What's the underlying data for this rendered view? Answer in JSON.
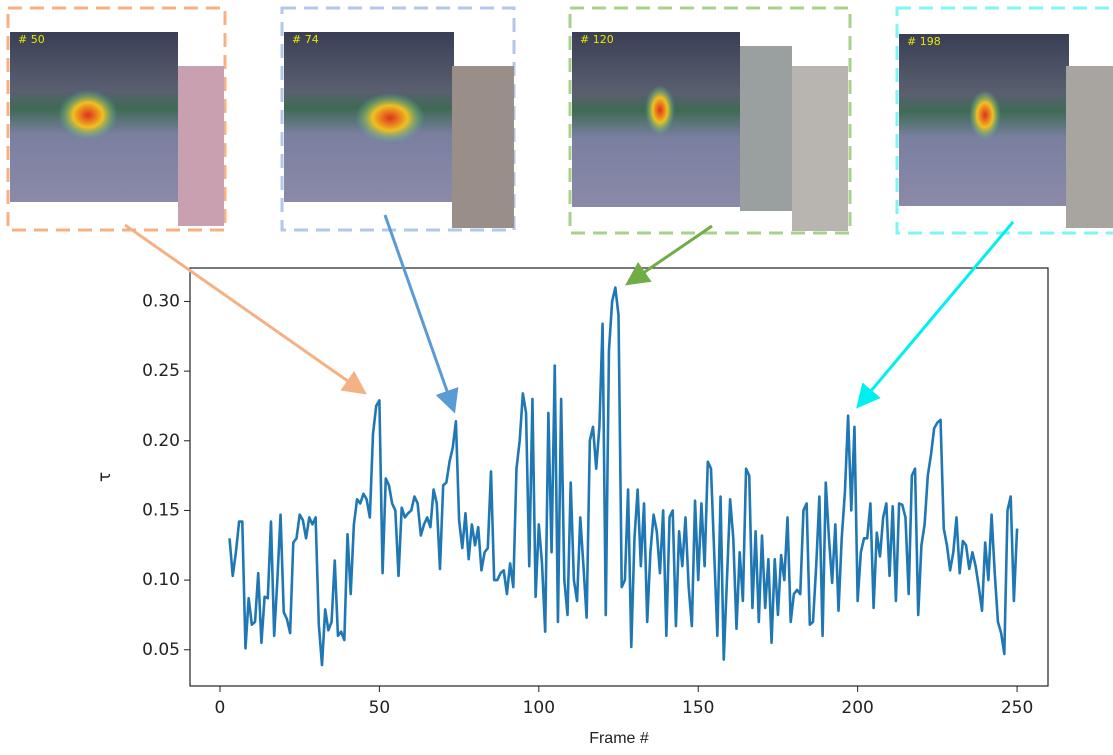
{
  "chart_data": {
    "type": "line",
    "x_label": "Frame #",
    "y_label": "τ",
    "annotations": [
      "# 50",
      "# 74",
      "# 120",
      "# 198"
    ],
    "xlim": [
      -9.4,
      259.7
    ],
    "ylim": [
      0.024,
      0.324
    ],
    "xticks": [
      0,
      50,
      100,
      150,
      200,
      250
    ],
    "yticks": [
      0.05,
      {
        "value": 0.1,
        "label": "0.10"
      },
      0.15,
      {
        "value": 0.2,
        "label": "0.20"
      },
      0.25,
      {
        "value": 0.3,
        "label": "0.30"
      }
    ],
    "x": [
      3,
      4,
      5,
      6,
      7,
      8,
      9,
      10,
      11,
      12,
      13,
      14,
      15,
      16,
      17,
      18,
      19,
      20,
      21,
      22,
      23,
      24,
      25,
      26,
      27,
      28,
      29,
      30,
      31,
      32,
      33,
      34,
      35,
      36,
      37,
      38,
      39,
      40,
      41,
      42,
      43,
      44,
      45,
      46,
      47,
      48,
      49,
      50,
      51,
      52,
      53,
      54,
      55,
      56,
      57,
      58,
      59,
      60,
      61,
      62,
      63,
      64,
      65,
      66,
      67,
      68,
      69,
      70,
      71,
      72,
      73,
      74,
      75,
      76,
      77,
      78,
      79,
      80,
      81,
      82,
      83,
      84,
      85,
      86,
      87,
      88,
      89,
      90,
      91,
      92,
      93,
      94,
      95,
      96,
      97,
      98,
      99,
      100,
      101,
      102,
      103,
      104,
      105,
      106,
      107,
      108,
      109,
      110,
      111,
      112,
      113,
      114,
      115,
      116,
      117,
      118,
      119,
      120,
      121,
      122,
      123,
      124,
      125,
      126,
      127,
      128,
      129,
      130,
      131,
      132,
      133,
      134,
      135,
      136,
      137,
      138,
      139,
      140,
      141,
      142,
      143,
      144,
      145,
      146,
      147,
      148,
      149,
      150,
      151,
      152,
      153,
      154,
      155,
      156,
      157,
      158,
      159,
      160,
      161,
      162,
      163,
      164,
      165,
      166,
      167,
      168,
      169,
      170,
      171,
      172,
      173,
      174,
      175,
      176,
      177,
      178,
      179,
      180,
      181,
      182,
      183,
      184,
      185,
      186,
      187,
      188,
      189,
      190,
      191,
      192,
      193,
      194,
      195,
      196,
      197,
      198,
      199,
      200,
      201,
      202,
      203,
      204,
      205,
      206,
      207,
      208,
      209,
      210,
      211,
      212,
      213,
      214,
      215,
      216,
      217,
      218,
      219,
      220,
      221,
      222,
      223,
      224,
      225,
      226,
      227,
      228,
      229,
      230,
      231,
      232,
      233,
      234,
      235,
      236,
      237,
      238,
      239,
      240,
      241,
      242,
      243,
      244,
      245,
      246,
      247,
      248,
      249,
      250
    ],
    "series": [
      {
        "color": "#1f77b4",
        "values": [
          0.13,
          0.103,
          0.12,
          0.142,
          0.142,
          0.051,
          0.087,
          0.068,
          0.07,
          0.105,
          0.055,
          0.088,
          0.087,
          0.142,
          0.06,
          0.1,
          0.147,
          0.077,
          0.072,
          0.062,
          0.127,
          0.13,
          0.147,
          0.143,
          0.13,
          0.145,
          0.14,
          0.145,
          0.068,
          0.039,
          0.079,
          0.064,
          0.07,
          0.114,
          0.06,
          0.063,
          0.057,
          0.133,
          0.09,
          0.14,
          0.158,
          0.155,
          0.162,
          0.158,
          0.145,
          0.205,
          0.225,
          0.229,
          0.105,
          0.173,
          0.168,
          0.155,
          0.15,
          0.103,
          0.152,
          0.145,
          0.148,
          0.15,
          0.16,
          0.155,
          0.132,
          0.14,
          0.145,
          0.138,
          0.165,
          0.155,
          0.108,
          0.168,
          0.17,
          0.185,
          0.195,
          0.214,
          0.143,
          0.123,
          0.148,
          0.115,
          0.14,
          0.125,
          0.138,
          0.107,
          0.12,
          0.123,
          0.178,
          0.1,
          0.1,
          0.105,
          0.107,
          0.09,
          0.112,
          0.095,
          0.18,
          0.2,
          0.234,
          0.22,
          0.11,
          0.23,
          0.088,
          0.14,
          0.112,
          0.063,
          0.22,
          0.12,
          0.254,
          0.07,
          0.23,
          0.1,
          0.075,
          0.17,
          0.1,
          0.085,
          0.145,
          0.11,
          0.073,
          0.2,
          0.21,
          0.18,
          0.21,
          0.284,
          0.075,
          0.265,
          0.3,
          0.31,
          0.29,
          0.095,
          0.1,
          0.165,
          0.052,
          0.13,
          0.165,
          0.11,
          0.155,
          0.07,
          0.12,
          0.147,
          0.135,
          0.105,
          0.15,
          0.06,
          0.145,
          0.15,
          0.067,
          0.135,
          0.11,
          0.145,
          0.095,
          0.067,
          0.157,
          0.1,
          0.155,
          0.11,
          0.185,
          0.18,
          0.12,
          0.06,
          0.16,
          0.043,
          0.1,
          0.158,
          0.13,
          0.065,
          0.12,
          0.085,
          0.18,
          0.175,
          0.08,
          0.135,
          0.07,
          0.132,
          0.08,
          0.115,
          0.055,
          0.115,
          0.075,
          0.118,
          0.1,
          0.145,
          0.07,
          0.09,
          0.093,
          0.09,
          0.15,
          0.155,
          0.068,
          0.07,
          0.11,
          0.16,
          0.06,
          0.17,
          0.13,
          0.098,
          0.14,
          0.078,
          0.13,
          0.163,
          0.218,
          0.15,
          0.21,
          0.085,
          0.12,
          0.13,
          0.13,
          0.155,
          0.08,
          0.134,
          0.117,
          0.145,
          0.155,
          0.103,
          0.153,
          0.085,
          0.155,
          0.154,
          0.145,
          0.09,
          0.175,
          0.18,
          0.075,
          0.125,
          0.14,
          0.175,
          0.19,
          0.209,
          0.213,
          0.215,
          0.137,
          0.125,
          0.107,
          0.12,
          0.145,
          0.105,
          0.128,
          0.125,
          0.108,
          0.12,
          0.11,
          0.095,
          0.078,
          0.127,
          0.1,
          0.147,
          0.105,
          0.07,
          0.062,
          0.047,
          0.15,
          0.16,
          0.085,
          0.137
        ]
      }
    ]
  }
}
